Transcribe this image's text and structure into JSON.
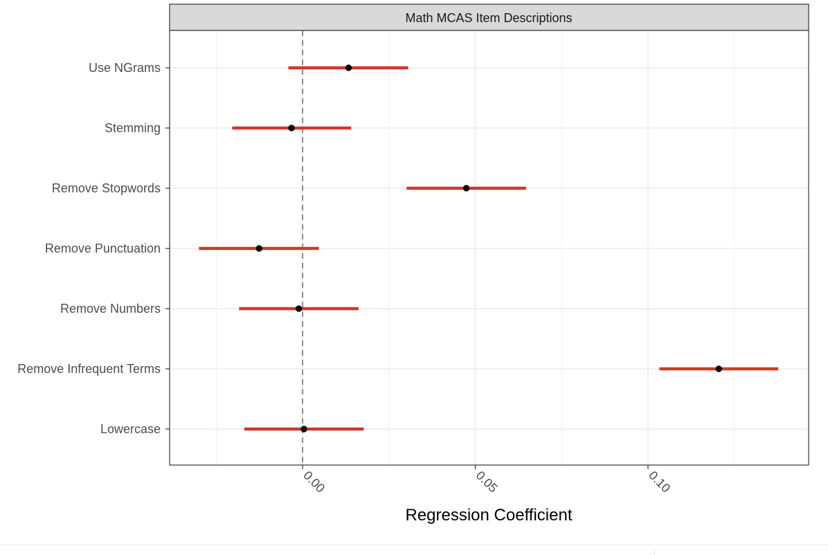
{
  "chart_data": {
    "type": "scatter",
    "title": "Math MCAS Item Descriptions",
    "xlabel": "Regression Coefficient",
    "ylabel": "",
    "xlim": [
      -0.0385,
      0.1465
    ],
    "xticks": [
      0.0,
      0.05,
      0.1
    ],
    "xtick_labels": [
      "0.00",
      "0.05",
      "0.10"
    ],
    "x_minor": [
      -0.025,
      0.025,
      0.075,
      0.125
    ],
    "reference_line": 0,
    "grid": true,
    "categories": [
      "Use NGrams",
      "Stemming",
      "Remove Stopwords",
      "Remove Punctuation",
      "Remove Numbers",
      "Remove Infrequent Terms",
      "Lowercase"
    ],
    "series": [
      {
        "estimate": [
          0.0133,
          -0.0032,
          0.0474,
          -0.0126,
          -0.0011,
          0.1205,
          0.0004
        ],
        "lower": [
          -0.0041,
          -0.0204,
          0.0301,
          -0.03,
          -0.0184,
          0.1033,
          -0.0169
        ],
        "upper": [
          0.0306,
          0.0141,
          0.0647,
          0.0047,
          0.0162,
          0.1377,
          0.0177
        ]
      }
    ],
    "colors": {
      "interval": "#d1382c",
      "point": "#000000",
      "strip": "#d9d9d9"
    }
  }
}
